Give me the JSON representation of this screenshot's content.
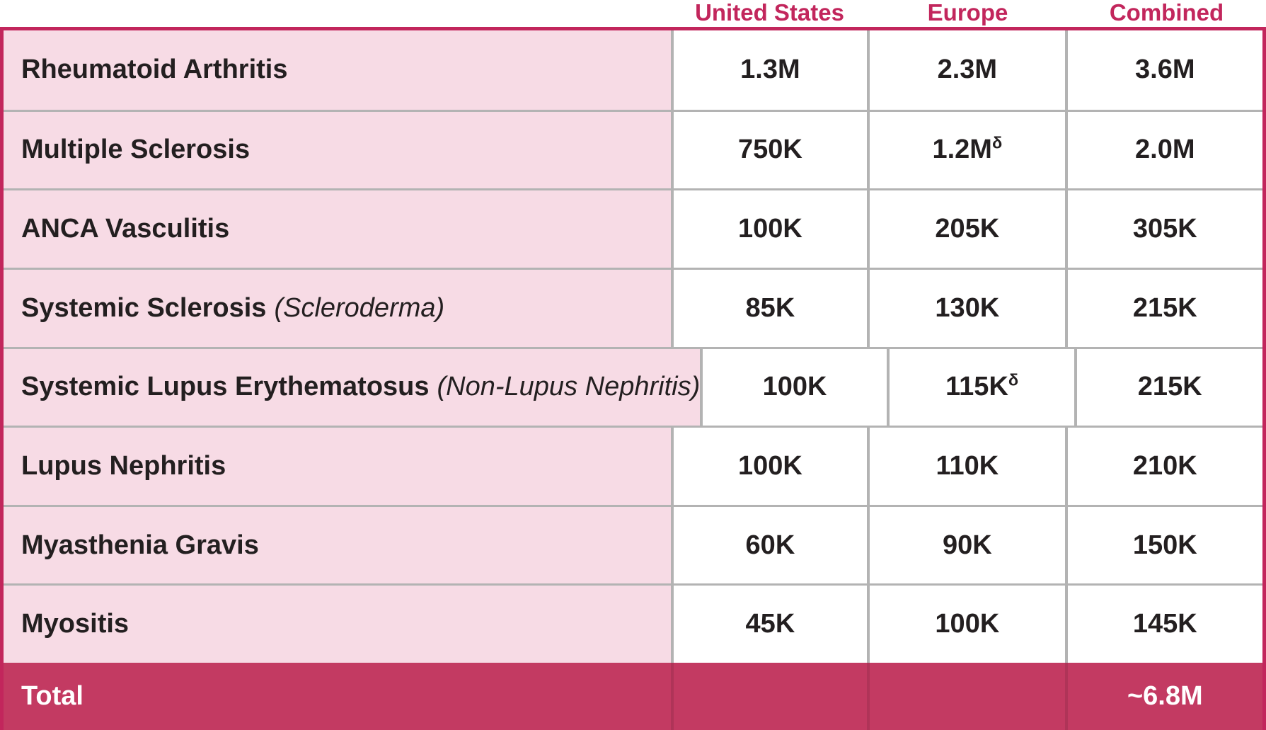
{
  "table": {
    "columns": [
      {
        "label": "United States"
      },
      {
        "label": "Europe"
      },
      {
        "label": "Combined"
      }
    ],
    "rows": [
      {
        "name": "Rheumatoid Arthritis",
        "note": "",
        "us": "1.3M",
        "europe": "2.3M",
        "europe_sup": "",
        "combined": "3.6M"
      },
      {
        "name": "Multiple Sclerosis",
        "note": "",
        "us": "750K",
        "europe": "1.2M",
        "europe_sup": "δ",
        "combined": "2.0M"
      },
      {
        "name": "ANCA Vasculitis",
        "note": "",
        "us": "100K",
        "europe": "205K",
        "europe_sup": "",
        "combined": "305K"
      },
      {
        "name": "Systemic Sclerosis",
        "note": "(Scleroderma)",
        "us": "85K",
        "europe": "130K",
        "europe_sup": "",
        "combined": "215K"
      },
      {
        "name": "Systemic Lupus Erythematosus",
        "note": "(Non-Lupus Nephritis)",
        "us": "100K",
        "europe": "115K",
        "europe_sup": "δ",
        "combined": "215K"
      },
      {
        "name": "Lupus Nephritis",
        "note": "",
        "us": "100K",
        "europe": "110K",
        "europe_sup": "",
        "combined": "210K"
      },
      {
        "name": "Myasthenia Gravis",
        "note": "",
        "us": "60K",
        "europe": "90K",
        "europe_sup": "",
        "combined": "150K"
      },
      {
        "name": "Myositis",
        "note": "",
        "us": "45K",
        "europe": "100K",
        "europe_sup": "",
        "combined": "145K"
      }
    ],
    "total": {
      "label": "Total",
      "us": "",
      "europe": "",
      "combined": "~6.8M"
    }
  },
  "colors": {
    "accent_magenta": "#c2265c",
    "total_row_background": "#c33a62",
    "row_label_background": "#f7dbe5",
    "grid_line_gray": "#b3b3b3",
    "body_text": "#231f20",
    "total_text": "#ffffff"
  }
}
